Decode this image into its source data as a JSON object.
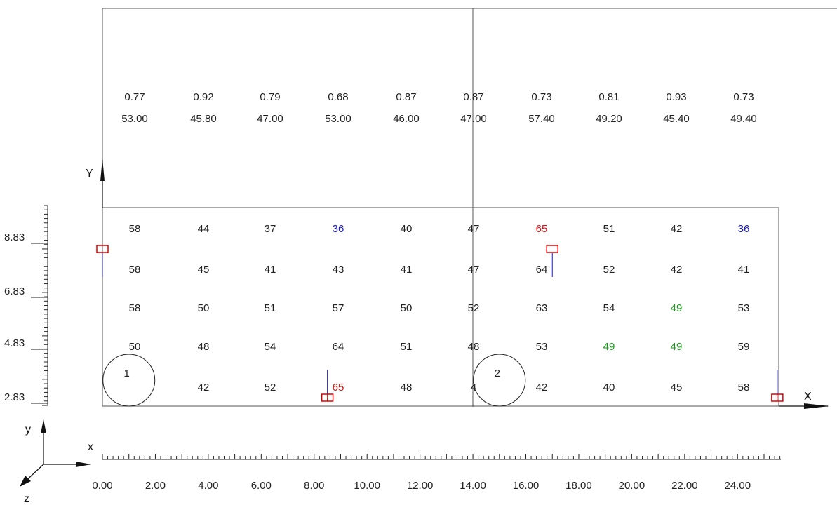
{
  "colors": {
    "line": "#555555",
    "text": "#222222",
    "low": "#1a1acc",
    "high": "#e01010",
    "mid": "#1a9a1a",
    "support": "#dd0000",
    "support_stem": "#1a1acc"
  },
  "axes": {
    "x_label": "X",
    "y_label": "Y",
    "triad_x": "x",
    "triad_y": "y",
    "triad_z": "z"
  },
  "x_ticks": [
    "0.00",
    "2.00",
    "4.00",
    "6.00",
    "8.00",
    "10.00",
    "12.00",
    "14.00",
    "16.00",
    "18.00",
    "20.00",
    "22.00",
    "24.00"
  ],
  "y_ticks": [
    "8.83",
    "6.83",
    "4.83",
    "2.83"
  ],
  "top_values": {
    "ratios": [
      "0.77",
      "0.92",
      "0.79",
      "0.68",
      "0.87",
      "0.87",
      "0.73",
      "0.81",
      "0.93",
      "0.73"
    ],
    "values": [
      "53.00",
      "45.80",
      "47.00",
      "53.00",
      "46.00",
      "47.00",
      "57.40",
      "49.20",
      "45.40",
      "49.40"
    ]
  },
  "grid": {
    "rows": [
      [
        "58",
        "44",
        "37",
        "36",
        "40",
        "47",
        "65",
        "51",
        "42",
        "36"
      ],
      [
        "58",
        "45",
        "41",
        "43",
        "41",
        "47",
        "64",
        "52",
        "42",
        "41"
      ],
      [
        "58",
        "50",
        "51",
        "57",
        "50",
        "52",
        "63",
        "54",
        "49",
        "53"
      ],
      [
        "50",
        "48",
        "54",
        "64",
        "51",
        "48",
        "53",
        "49",
        "49",
        "59"
      ],
      [
        "",
        "42",
        "52",
        "65",
        "48",
        "4",
        "42",
        "40",
        "45",
        "58"
      ]
    ],
    "colors": [
      [
        "text",
        "text",
        "text",
        "low",
        "text",
        "text",
        "high",
        "text",
        "text",
        "low"
      ],
      [
        "text",
        "text",
        "text",
        "text",
        "text",
        "text",
        "text",
        "text",
        "text",
        "text"
      ],
      [
        "text",
        "text",
        "text",
        "text",
        "text",
        "text",
        "text",
        "text",
        "mid",
        "text"
      ],
      [
        "text",
        "text",
        "text",
        "text",
        "text",
        "text",
        "text",
        "mid",
        "mid",
        "text"
      ],
      [
        "text",
        "text",
        "text",
        "high",
        "text",
        "text",
        "text",
        "text",
        "text",
        "text"
      ]
    ]
  },
  "piles": [
    {
      "label": "1",
      "x": 1.0
    },
    {
      "label": "2",
      "x": 15.0
    }
  ],
  "supports": [
    {
      "x": 0.0,
      "y": 8.0
    },
    {
      "x": 8.5,
      "y": 0.3
    },
    {
      "x": 17.0,
      "y": 8.0
    },
    {
      "x": 25.5,
      "y": 0.3
    }
  ]
}
